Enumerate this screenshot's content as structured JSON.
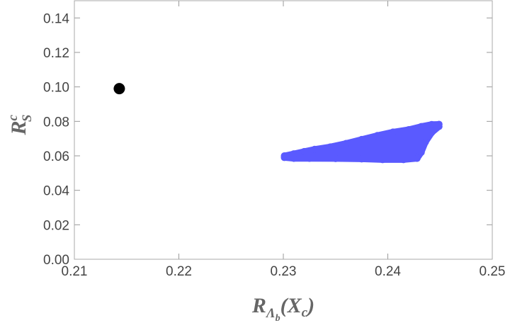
{
  "chart_data": {
    "type": "scatter",
    "title": "",
    "xlabel": {
      "main": "R",
      "sub": "Λ",
      "subsub": "b",
      "arg": "(X",
      "arg_sub": "c",
      "close": ")"
    },
    "ylabel": {
      "main": "R",
      "sup": "c",
      "sub": "S"
    },
    "xlim": [
      0.21,
      0.25
    ],
    "ylim": [
      0.0,
      0.15
    ],
    "x_ticks": [
      "0.21",
      "0.22",
      "0.23",
      "0.24",
      "0.25"
    ],
    "x_tick_values": [
      0.21,
      0.22,
      0.23,
      0.24,
      0.25
    ],
    "y_ticks": [
      "0.00",
      "0.02",
      "0.04",
      "0.06",
      "0.08",
      "0.10",
      "0.12",
      "0.14"
    ],
    "y_tick_values": [
      0.0,
      0.02,
      0.04,
      0.06,
      0.08,
      0.1,
      0.12,
      0.14
    ],
    "grid": false,
    "series": [
      {
        "color": "#5a5aff",
        "kind": "region",
        "outline": [
          [
            0.2301,
            0.06
          ],
          [
            0.231,
            0.0612
          ],
          [
            0.232,
            0.0625
          ],
          [
            0.233,
            0.0638
          ],
          [
            0.2345,
            0.0652
          ],
          [
            0.236,
            0.0672
          ],
          [
            0.2375,
            0.0695
          ],
          [
            0.239,
            0.0718
          ],
          [
            0.2405,
            0.0738
          ],
          [
            0.242,
            0.0752
          ],
          [
            0.2432,
            0.077
          ],
          [
            0.2442,
            0.0782
          ],
          [
            0.2449,
            0.0783
          ],
          [
            0.2449,
            0.077
          ],
          [
            0.2442,
            0.0735
          ],
          [
            0.2436,
            0.068
          ],
          [
            0.2432,
            0.062
          ],
          [
            0.2428,
            0.0585
          ],
          [
            0.2415,
            0.0578
          ],
          [
            0.2395,
            0.0578
          ],
          [
            0.2375,
            0.0582
          ],
          [
            0.235,
            0.0584
          ],
          [
            0.2325,
            0.0585
          ],
          [
            0.231,
            0.0585
          ],
          [
            0.2301,
            0.059
          ]
        ]
      },
      {
        "color": "#000000",
        "kind": "point",
        "points": [
          [
            0.2143,
            0.099
          ]
        ]
      }
    ]
  }
}
